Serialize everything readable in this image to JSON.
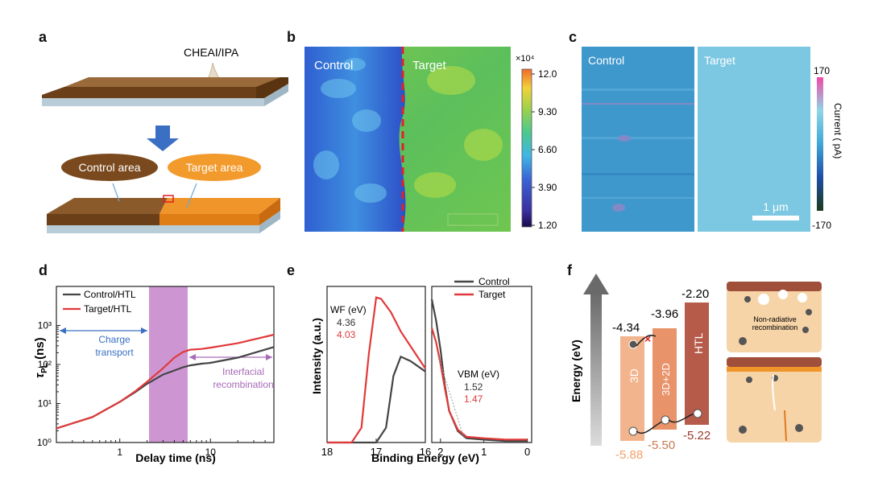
{
  "panel_labels": [
    "a",
    "b",
    "c",
    "d",
    "e",
    "f"
  ],
  "panel_a": {
    "solution_label": "CHEAI/IPA",
    "control_area": "Control area",
    "target_area": "Target area",
    "colors": {
      "film": "#7a4a1e",
      "film_top": "#8b5a2b",
      "substrate": "#b9cdd9",
      "target_fill": "#f39a2c",
      "arrow": "#3a6fc4"
    }
  },
  "panel_b": {
    "left_label": "Control",
    "right_label": "Target",
    "colorbar_exponent": "×10⁴",
    "colorbar_ticks": [
      "12.0",
      "9.30",
      "6.60",
      "3.90",
      "1.20"
    ]
  },
  "panel_c": {
    "left_label": "Control",
    "right_label": "Target",
    "scale_bar": "1 μm",
    "colorbar_title": "Current ( pA)",
    "colorbar_top": "170",
    "colorbar_bottom": "-170"
  },
  "chart_data": [
    {
      "type": "line",
      "panel": "d",
      "xlabel": "Delay time (ns)",
      "ylabel": "τPL (ns)",
      "xscale": "log",
      "yscale": "log",
      "xlim": [
        0.2,
        50
      ],
      "ylim": [
        1,
        10000
      ],
      "x_ticks": [
        "1",
        "10"
      ],
      "y_ticks": [
        "10⁰",
        "10¹",
        "10²",
        "10³"
      ],
      "series": [
        {
          "name": "Control/HTL",
          "color": "#444444",
          "x": [
            0.2,
            0.5,
            1,
            1.5,
            2,
            3,
            4,
            5,
            6,
            8,
            10,
            20,
            50
          ],
          "y": [
            2.3,
            4.5,
            11,
            20,
            32,
            55,
            70,
            85,
            95,
            105,
            110,
            150,
            280
          ]
        },
        {
          "name": "Target/HTL",
          "color": "#e03a3a",
          "x": [
            0.2,
            0.5,
            1,
            1.5,
            2,
            3,
            4,
            5,
            6,
            8,
            10,
            20,
            50
          ],
          "y": [
            2.3,
            4.5,
            11,
            21,
            36,
            80,
            150,
            210,
            240,
            250,
            270,
            350,
            580
          ]
        }
      ],
      "shaded_region_x": [
        2.1,
        5.6
      ],
      "annotations": [
        "Charge transport",
        "Interfacial recombination"
      ]
    },
    {
      "type": "line",
      "panel": "e-left",
      "xlabel": "Binding Energy (eV)",
      "ylabel": "Intensity (a.u.)",
      "xlim": [
        18,
        16
      ],
      "x_ticks": [
        "18",
        "17",
        "16"
      ],
      "legend_title": "WF (eV)",
      "values": {
        "Control": "4.36",
        "Target": "4.03"
      },
      "series": [
        {
          "name": "Control",
          "color": "#444444",
          "x": [
            18,
            17.4,
            17.0,
            16.8,
            16.65,
            16.5,
            16.3,
            16.0
          ],
          "y": [
            0.0,
            0.0,
            0.0,
            0.1,
            0.45,
            0.58,
            0.55,
            0.48
          ]
        },
        {
          "name": "Target",
          "color": "#e03a3a",
          "x": [
            18,
            17.5,
            17.3,
            17.15,
            17.0,
            16.9,
            16.7,
            16.5,
            16.2,
            16.0
          ],
          "y": [
            0.0,
            0.0,
            0.1,
            0.6,
            0.98,
            0.97,
            0.88,
            0.75,
            0.6,
            0.5
          ]
        }
      ]
    },
    {
      "type": "line",
      "panel": "e-right",
      "xlim": [
        2.2,
        -0.1
      ],
      "x_ticks": [
        "2",
        "1",
        "0"
      ],
      "legend": [
        "Control",
        "Target"
      ],
      "legend_title": "VBM (eV)",
      "values": {
        "Control": "1.52",
        "Target": "1.47"
      },
      "series": [
        {
          "name": "Control",
          "color": "#444444",
          "x": [
            2.2,
            2.1,
            2.0,
            1.9,
            1.8,
            1.6,
            1.4,
            1.0,
            0.5,
            0.0
          ],
          "y": [
            1.0,
            0.85,
            0.65,
            0.4,
            0.22,
            0.08,
            0.03,
            0.02,
            0.01,
            0.01
          ]
        },
        {
          "name": "Target",
          "color": "#e03a3a",
          "x": [
            2.2,
            2.1,
            2.0,
            1.9,
            1.8,
            1.6,
            1.4,
            1.0,
            0.5,
            0.0
          ],
          "y": [
            0.8,
            0.7,
            0.55,
            0.38,
            0.22,
            0.09,
            0.04,
            0.03,
            0.02,
            0.02
          ]
        }
      ]
    }
  ],
  "panel_f": {
    "axis_label": "Energy (eV)",
    "blocks": [
      {
        "name": "3D",
        "top": "-4.34",
        "bottom": "-5.88",
        "color": "#f2b48c"
      },
      {
        "name": "3D+2D",
        "top": "-3.96",
        "bottom": "-5.50",
        "color": "#e8936a"
      },
      {
        "name": "HTL",
        "top": "-2.20",
        "bottom": "-5.22",
        "color": "#b65a4a"
      }
    ],
    "note": "Non-radiative recombination"
  }
}
